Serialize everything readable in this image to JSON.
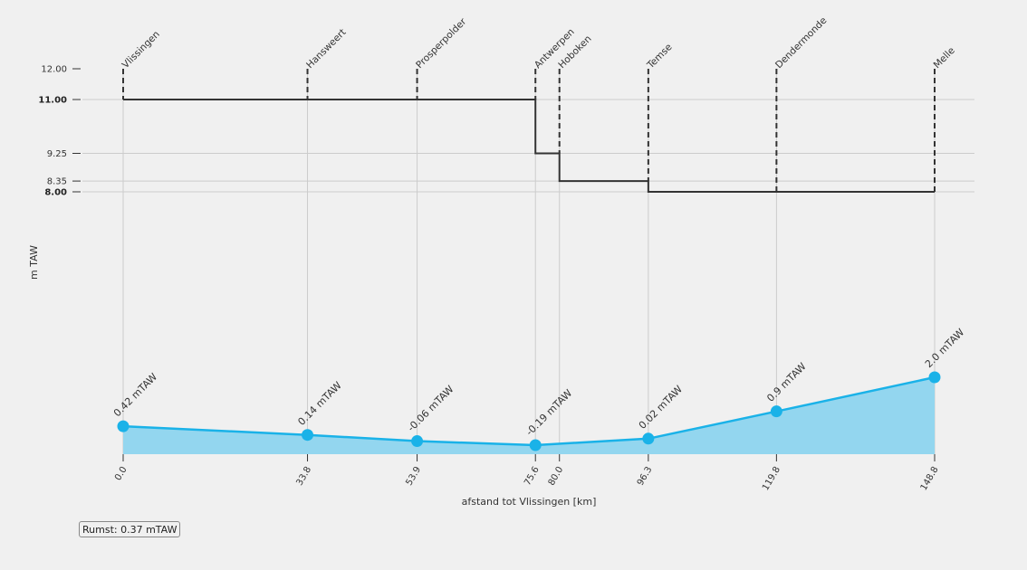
{
  "chart_data": {
    "type": "line",
    "xlabel": "afstand tot Vlissingen [km]",
    "ylabel": "m TAW",
    "x_ticks": [
      "0.0",
      "33.8",
      "53.9",
      "75.6",
      "80.0",
      "96.3",
      "119.8",
      "148.8"
    ],
    "stations": [
      {
        "name": "Vlissingen",
        "km": 0.0
      },
      {
        "name": "Hansweert",
        "km": 33.8
      },
      {
        "name": "Prosperpolder",
        "km": 53.9
      },
      {
        "name": "Antwerpen",
        "km": 75.6
      },
      {
        "name": "Hoboken",
        "km": 80.0
      },
      {
        "name": "Temse",
        "km": 96.3
      },
      {
        "name": "Dendermonde",
        "km": 119.8
      },
      {
        "name": "Melle",
        "km": 148.8
      }
    ],
    "dike_height_axis": {
      "ticks": [
        "12.00",
        "11.00",
        "9.25",
        "8.35",
        "8.00"
      ],
      "bold_ticks": [
        "11.00",
        "8.00"
      ],
      "ylim": [
        8.0,
        12.0
      ]
    },
    "series": [
      {
        "role": "dike-height",
        "color": "#333333",
        "style": "step",
        "segments": [
          {
            "x": [
              0.0,
              75.6
            ],
            "y": 11.0
          },
          {
            "x": [
              75.6,
              80.0
            ],
            "y": 9.25
          },
          {
            "x": [
              80.0,
              96.3
            ],
            "y": 8.35
          },
          {
            "x": [
              96.3,
              148.8
            ],
            "y": 8.0
          }
        ]
      },
      {
        "role": "water-level",
        "color": "#1ab2e8",
        "fill": "#93d6ef",
        "style": "area",
        "unit": "mTAW",
        "x": [
          0.0,
          33.8,
          53.9,
          75.6,
          96.3,
          119.8,
          148.8
        ],
        "y": [
          0.42,
          0.14,
          -0.06,
          -0.19,
          0.02,
          0.9,
          2.0
        ],
        "labels": [
          "0.42 mTAW",
          "0.14 mTAW",
          "-0.06 mTAW",
          "-0.19 mTAW",
          "0.02 mTAW",
          "0.9 mTAW",
          "2.0 mTAW"
        ]
      }
    ],
    "grid": true
  },
  "info_box": {
    "text": "Rumst: 0.37 mTAW"
  }
}
